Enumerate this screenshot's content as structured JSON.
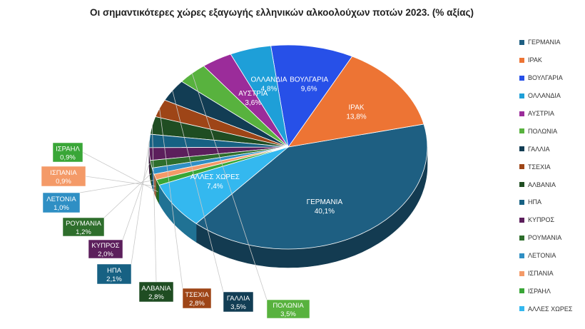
{
  "chart_data": {
    "type": "pie",
    "title": "Οι σημαντικότερες χώρες εξαγωγής ελληνικών αλκοολούχων ποτών 2023. (% αξίας)",
    "legend_position": "right",
    "three_d": true,
    "slices": [
      {
        "name": "ΓΕΡΜΑΝΙΑ",
        "value": 40.1,
        "label": "40,1%",
        "color": "#1e5f82"
      },
      {
        "name": "ΙΡΑΚ",
        "value": 13.8,
        "label": "13,8%",
        "color": "#ed7434"
      },
      {
        "name": "ΒΟΥΛΓΑΡΙΑ",
        "value": 9.6,
        "label": "9,6%",
        "color": "#2750e8"
      },
      {
        "name": "ΟΛΛΑΝΔΙΑ",
        "value": 4.8,
        "label": "4,8%",
        "color": "#1e9fd8"
      },
      {
        "name": "ΑΥΣΤΡΙΑ",
        "value": 3.6,
        "label": "3,6%",
        "color": "#9b2c9a"
      },
      {
        "name": "ΠΟΛΩΝΙΑ",
        "value": 3.5,
        "label": "3,5%",
        "color": "#58b23e"
      },
      {
        "name": "ΓΑΛΛΙΑ",
        "value": 3.5,
        "label": "3,5%",
        "color": "#123d54"
      },
      {
        "name": "ΤΣΕΧΙΑ",
        "value": 2.8,
        "label": "2,8%",
        "color": "#9e4517"
      },
      {
        "name": "ΑΛΒΑΝΙΑ",
        "value": 2.8,
        "label": "2,8%",
        "color": "#1f4d22"
      },
      {
        "name": "ΗΠΑ",
        "value": 2.1,
        "label": "2,1%",
        "color": "#176183"
      },
      {
        "name": "ΚΥΠΡΟΣ",
        "value": 2.0,
        "label": "2,0%",
        "color": "#5c1f5c"
      },
      {
        "name": "ΡΟΥΜΑΝΙΑ",
        "value": 1.2,
        "label": "1,2%",
        "color": "#2e6e2c"
      },
      {
        "name": "ΛΕΤΟΝΙΑ",
        "value": 1.0,
        "label": "1,0%",
        "color": "#2f8fc4"
      },
      {
        "name": "ΙΣΠΑΝΙΑ",
        "value": 0.9,
        "label": "0,9%",
        "color": "#f49a68"
      },
      {
        "name": "ΙΣΡΑΗΛ",
        "value": 0.9,
        "label": "0,9%",
        "color": "#39a637"
      },
      {
        "name": "ΑΛΛΕΣ ΧΩΡΕΣ",
        "value": 7.4,
        "label": "7,4%",
        "color": "#34b8ef"
      }
    ]
  }
}
